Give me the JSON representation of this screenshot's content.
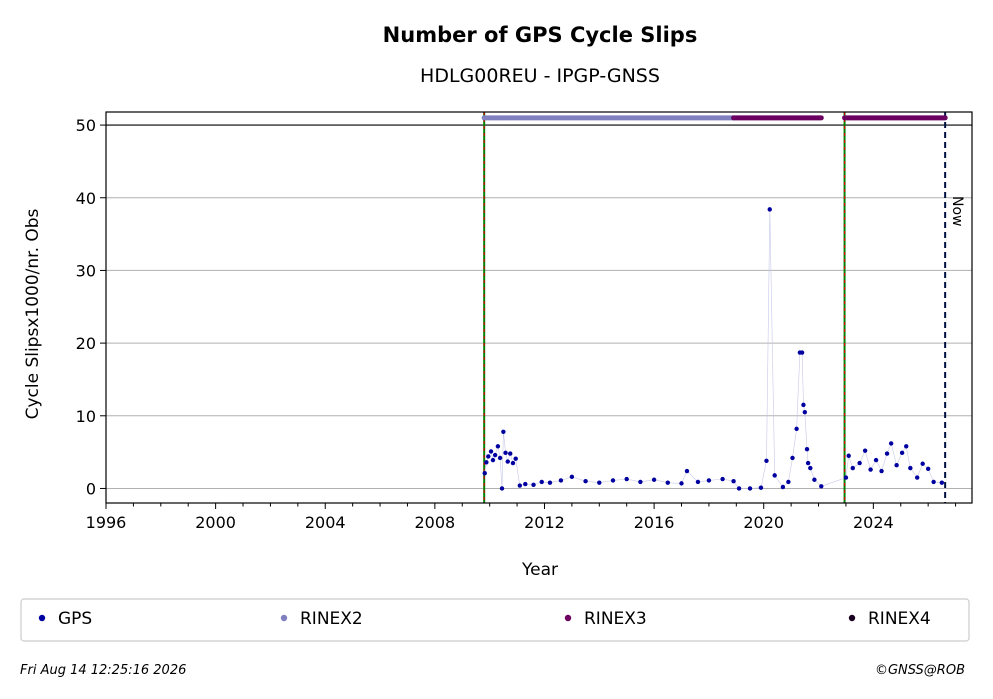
{
  "chart_data": {
    "type": "scatter",
    "title": "Number of GPS Cycle Slips",
    "subtitle": "HDLG00REU - IPGP-GNSS",
    "xlabel": "Year",
    "ylabel": "Cycle Slipsx1000/nr. Obs",
    "xlim": [
      1996,
      2027.6
    ],
    "ylim": [
      -2,
      51.8
    ],
    "x_ticks": [
      1996,
      2000,
      2004,
      2008,
      2012,
      2016,
      2020,
      2024
    ],
    "x_tick_labels": [
      "1996",
      "2000",
      "2004",
      "2008",
      "2012",
      "2016",
      "2020",
      "2024"
    ],
    "y_ticks": [
      0,
      10,
      20,
      30,
      40,
      50
    ],
    "y_tick_labels": [
      "0",
      "10",
      "20",
      "30",
      "40",
      "50"
    ],
    "grid": "horizontal",
    "vertical_markers": [
      {
        "x": 2009.8,
        "style": "green-red-dashed"
      },
      {
        "x": 2022.95,
        "style": "green-red-dashed"
      }
    ],
    "now_marker": {
      "x": 2026.62,
      "label": "Now"
    },
    "series": [
      {
        "name": "GPS",
        "color": "#0000a0",
        "points": [
          [
            2009.82,
            2.1
          ],
          [
            2009.88,
            3.6
          ],
          [
            2009.95,
            4.4
          ],
          [
            2010.05,
            5.1
          ],
          [
            2010.12,
            3.9
          ],
          [
            2010.2,
            4.6
          ],
          [
            2010.3,
            5.8
          ],
          [
            2010.38,
            4.2
          ],
          [
            2010.45,
            0.0
          ],
          [
            2010.5,
            7.8
          ],
          [
            2010.58,
            4.9
          ],
          [
            2010.66,
            3.7
          ],
          [
            2010.75,
            4.8
          ],
          [
            2010.85,
            3.5
          ],
          [
            2010.95,
            4.1
          ],
          [
            2011.1,
            0.4
          ],
          [
            2011.3,
            0.6
          ],
          [
            2011.6,
            0.5
          ],
          [
            2011.9,
            0.9
          ],
          [
            2012.2,
            0.8
          ],
          [
            2012.6,
            1.1
          ],
          [
            2013.0,
            1.6
          ],
          [
            2013.5,
            1.0
          ],
          [
            2014.0,
            0.8
          ],
          [
            2014.5,
            1.1
          ],
          [
            2015.0,
            1.3
          ],
          [
            2015.5,
            0.9
          ],
          [
            2016.0,
            1.2
          ],
          [
            2016.5,
            0.8
          ],
          [
            2017.0,
            0.7
          ],
          [
            2017.2,
            2.4
          ],
          [
            2017.6,
            0.9
          ],
          [
            2018.0,
            1.1
          ],
          [
            2018.5,
            1.3
          ],
          [
            2018.9,
            1.0
          ],
          [
            2019.1,
            0.0
          ],
          [
            2019.5,
            0.0
          ],
          [
            2019.9,
            0.1
          ],
          [
            2020.1,
            3.8
          ],
          [
            2020.22,
            38.4
          ],
          [
            2020.4,
            1.8
          ],
          [
            2020.7,
            0.2
          ],
          [
            2020.9,
            0.9
          ],
          [
            2021.05,
            4.2
          ],
          [
            2021.2,
            8.2
          ],
          [
            2021.32,
            18.7
          ],
          [
            2021.4,
            18.7
          ],
          [
            2021.45,
            11.5
          ],
          [
            2021.5,
            10.5
          ],
          [
            2021.58,
            5.4
          ],
          [
            2021.62,
            3.5
          ],
          [
            2021.7,
            2.8
          ],
          [
            2021.85,
            1.2
          ],
          [
            2022.1,
            0.3
          ],
          [
            2023.0,
            1.5
          ],
          [
            2023.1,
            4.5
          ],
          [
            2023.25,
            2.8
          ],
          [
            2023.5,
            3.5
          ],
          [
            2023.7,
            5.2
          ],
          [
            2023.9,
            2.6
          ],
          [
            2024.1,
            3.9
          ],
          [
            2024.3,
            2.4
          ],
          [
            2024.5,
            4.8
          ],
          [
            2024.65,
            6.2
          ],
          [
            2024.85,
            3.2
          ],
          [
            2025.05,
            4.9
          ],
          [
            2025.2,
            5.8
          ],
          [
            2025.35,
            2.8
          ],
          [
            2025.6,
            1.5
          ],
          [
            2025.8,
            3.4
          ],
          [
            2026.0,
            2.7
          ],
          [
            2026.2,
            0.9
          ],
          [
            2026.5,
            0.8
          ]
        ]
      },
      {
        "name": "RINEX2",
        "color": "#8080c0",
        "ranges": [
          [
            2009.8,
            2018.9
          ]
        ]
      },
      {
        "name": "RINEX3",
        "color": "#6b0060",
        "ranges": [
          [
            2018.9,
            2022.1
          ],
          [
            2022.95,
            2026.62
          ]
        ]
      },
      {
        "name": "RINEX4",
        "color": "#1a0020",
        "ranges": []
      }
    ],
    "legend": {
      "placement": "bottom",
      "entries": [
        "GPS",
        "RINEX2",
        "RINEX3",
        "RINEX4"
      ]
    }
  },
  "footer": {
    "timestamp": "Fri Aug 14 12:25:16 2026",
    "credit": "©GNSS@ROB"
  }
}
